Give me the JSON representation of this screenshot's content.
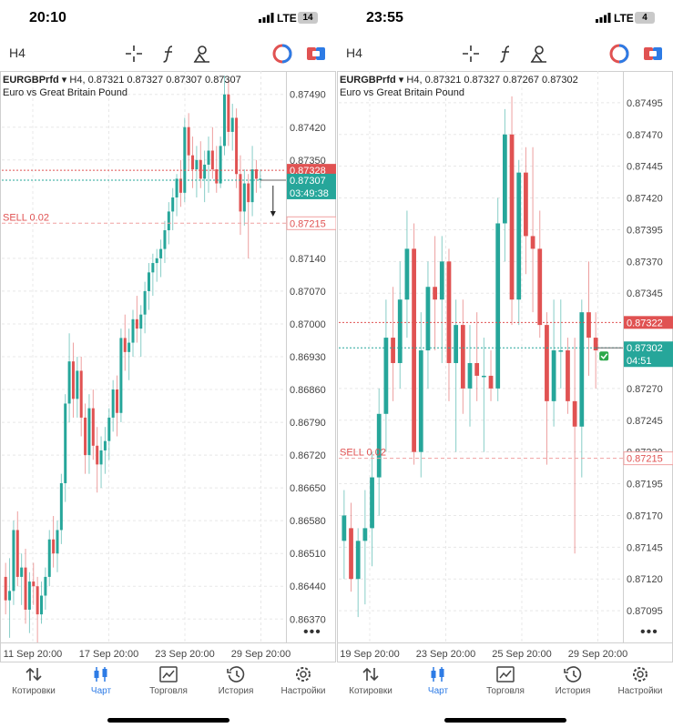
{
  "screens": [
    {
      "status": {
        "time": "20:10",
        "network": "LTE",
        "battery": "14"
      },
      "timeframe": "H4",
      "symbol": {
        "name": "EURGBPrfd",
        "arrow": "▾",
        "ohlc": "H4, 0.87321 0.87327 0.87307 0.87307",
        "description": "Euro vs Great Britain Pound"
      },
      "price_axis": [
        "0.87490",
        "0.87420",
        "0.87350",
        "0.87140",
        "0.87070",
        "0.87000",
        "0.86930",
        "0.86860",
        "0.86790",
        "0.86720",
        "0.86650",
        "0.86580",
        "0.86510",
        "0.86440",
        "0.86370"
      ],
      "time_axis": [
        "11 Sep 20:00",
        "17 Sep 20:00",
        "23 Sep 20:00",
        "29 Sep 20:00"
      ],
      "ask_price": "0.87328",
      "bid_price": "0.87307",
      "countdown": "03:49:38",
      "order": {
        "label": "SELL 0.02",
        "price": "0.87215"
      },
      "chart_data": {
        "type": "candlestick",
        "y_min": 0.8632,
        "y_max": 0.8754,
        "ask": 0.87328,
        "bid": 0.87307,
        "order": 0.87215,
        "candles": [
          [
            0.8646,
            0.8649,
            0.8638,
            0.8641
          ],
          [
            0.8641,
            0.865,
            0.8633,
            0.8643
          ],
          [
            0.8643,
            0.8658,
            0.864,
            0.8656
          ],
          [
            0.8656,
            0.866,
            0.8644,
            0.8646
          ],
          [
            0.8646,
            0.8651,
            0.864,
            0.8648
          ],
          [
            0.8648,
            0.8652,
            0.8636,
            0.8639
          ],
          [
            0.8639,
            0.8647,
            0.8634,
            0.8645
          ],
          [
            0.8645,
            0.8649,
            0.864,
            0.8644
          ],
          [
            0.8644,
            0.8646,
            0.8632,
            0.8638
          ],
          [
            0.8638,
            0.8645,
            0.8636,
            0.8642
          ],
          [
            0.8642,
            0.8648,
            0.8639,
            0.8646
          ],
          [
            0.8646,
            0.8656,
            0.8644,
            0.8654
          ],
          [
            0.8654,
            0.8659,
            0.8648,
            0.8651
          ],
          [
            0.8651,
            0.8658,
            0.8647,
            0.8656
          ],
          [
            0.8656,
            0.8668,
            0.8653,
            0.8666
          ],
          [
            0.8666,
            0.8685,
            0.8662,
            0.8683
          ],
          [
            0.8683,
            0.8698,
            0.8679,
            0.8692
          ],
          [
            0.8692,
            0.8696,
            0.868,
            0.8684
          ],
          [
            0.8684,
            0.8693,
            0.868,
            0.869
          ],
          [
            0.869,
            0.8693,
            0.8676,
            0.868
          ],
          [
            0.868,
            0.8683,
            0.8668,
            0.8672
          ],
          [
            0.8672,
            0.8685,
            0.8668,
            0.8682
          ],
          [
            0.8682,
            0.8686,
            0.8671,
            0.8674
          ],
          [
            0.8674,
            0.8678,
            0.8664,
            0.867
          ],
          [
            0.867,
            0.8676,
            0.8665,
            0.8673
          ],
          [
            0.8673,
            0.8678,
            0.8668,
            0.8675
          ],
          [
            0.8675,
            0.8682,
            0.8671,
            0.868
          ],
          [
            0.868,
            0.8688,
            0.8677,
            0.8686
          ],
          [
            0.8686,
            0.8689,
            0.8676,
            0.8681
          ],
          [
            0.8681,
            0.8699,
            0.8679,
            0.8697
          ],
          [
            0.8697,
            0.8702,
            0.869,
            0.8694
          ],
          [
            0.8694,
            0.8699,
            0.8688,
            0.8696
          ],
          [
            0.8696,
            0.8703,
            0.8693,
            0.8701
          ],
          [
            0.8701,
            0.8706,
            0.8696,
            0.8699
          ],
          [
            0.8699,
            0.8704,
            0.8693,
            0.8702
          ],
          [
            0.8702,
            0.8709,
            0.8698,
            0.8707
          ],
          [
            0.8707,
            0.8713,
            0.8703,
            0.8711
          ],
          [
            0.8711,
            0.8715,
            0.8706,
            0.8713
          ],
          [
            0.8713,
            0.8716,
            0.8709,
            0.8714
          ],
          [
            0.8714,
            0.8718,
            0.871,
            0.8716
          ],
          [
            0.8716,
            0.8722,
            0.8713,
            0.872
          ],
          [
            0.872,
            0.8726,
            0.8717,
            0.8724
          ],
          [
            0.8724,
            0.8729,
            0.872,
            0.8727
          ],
          [
            0.8727,
            0.8732,
            0.8723,
            0.8731
          ],
          [
            0.8731,
            0.8735,
            0.8725,
            0.8728
          ],
          [
            0.8728,
            0.8744,
            0.8726,
            0.8742
          ],
          [
            0.8742,
            0.8745,
            0.8733,
            0.8736
          ],
          [
            0.8736,
            0.874,
            0.8729,
            0.8733
          ],
          [
            0.8733,
            0.8738,
            0.8727,
            0.8735
          ],
          [
            0.8735,
            0.8739,
            0.8729,
            0.8731
          ],
          [
            0.8731,
            0.8737,
            0.8726,
            0.8734
          ],
          [
            0.8734,
            0.874,
            0.8728,
            0.8737
          ],
          [
            0.8737,
            0.8742,
            0.8731,
            0.8733
          ],
          [
            0.8733,
            0.8738,
            0.8728,
            0.873
          ],
          [
            0.873,
            0.874,
            0.8729,
            0.8738
          ],
          [
            0.8738,
            0.8753,
            0.8736,
            0.8749
          ],
          [
            0.8749,
            0.8752,
            0.8738,
            0.8741
          ],
          [
            0.8741,
            0.8747,
            0.8737,
            0.8744
          ],
          [
            0.8744,
            0.8746,
            0.8729,
            0.8732
          ],
          [
            0.8732,
            0.8736,
            0.8719,
            0.8724
          ],
          [
            0.8724,
            0.8733,
            0.8721,
            0.873
          ],
          [
            0.873,
            0.8732,
            0.8714,
            0.8726
          ],
          [
            0.8726,
            0.8738,
            0.8723,
            0.8733
          ],
          [
            0.8733,
            0.8735,
            0.8728,
            0.8731
          ],
          [
            0.8731,
            0.8733,
            0.8729,
            0.8731
          ]
        ]
      },
      "nav": [
        {
          "label": "Котировки",
          "icon": "quotes-icon"
        },
        {
          "label": "Чарт",
          "icon": "chart-icon",
          "active": true
        },
        {
          "label": "Торговля",
          "icon": "trade-icon"
        },
        {
          "label": "История",
          "icon": "history-icon"
        },
        {
          "label": "Настройки",
          "icon": "settings-icon"
        }
      ]
    },
    {
      "status": {
        "time": "23:55",
        "network": "LTE",
        "battery": "4"
      },
      "timeframe": "H4",
      "symbol": {
        "name": "EURGBPrfd",
        "arrow": "▾",
        "ohlc": "H4, 0.87321 0.87327 0.87267 0.87302",
        "description": "Euro vs Great Britain Pound"
      },
      "price_axis": [
        "0.87495",
        "0.87470",
        "0.87445",
        "0.87420",
        "0.87395",
        "0.87370",
        "0.87345",
        "0.87270",
        "0.87245",
        "0.87220",
        "0.87195",
        "0.87170",
        "0.87145",
        "0.87120",
        "0.87095"
      ],
      "time_axis": [
        "19 Sep 20:00",
        "23 Sep 20:00",
        "25 Sep 20:00",
        "29 Sep 20:00"
      ],
      "ask_price": "0.87322",
      "bid_price": "0.87302",
      "countdown": "04:51",
      "order": {
        "label": "SELL 0.02",
        "price": "0.87215"
      },
      "chart_data": {
        "type": "candlestick",
        "y_min": 0.8707,
        "y_max": 0.8752,
        "ask": 0.87322,
        "bid": 0.87302,
        "order": 0.87215,
        "candles": [
          [
            0.8715,
            0.8719,
            0.8712,
            0.8717
          ],
          [
            0.8716,
            0.8718,
            0.8711,
            0.8712
          ],
          [
            0.8712,
            0.8716,
            0.8709,
            0.8715
          ],
          [
            0.8715,
            0.8719,
            0.871,
            0.8716
          ],
          [
            0.8716,
            0.8722,
            0.8713,
            0.872
          ],
          [
            0.872,
            0.8727,
            0.8717,
            0.8725
          ],
          [
            0.8725,
            0.8734,
            0.8722,
            0.8731
          ],
          [
            0.8731,
            0.8735,
            0.8726,
            0.8729
          ],
          [
            0.8729,
            0.8737,
            0.8727,
            0.8734
          ],
          [
            0.8734,
            0.8741,
            0.8731,
            0.8738
          ],
          [
            0.8738,
            0.874,
            0.8721,
            0.8722
          ],
          [
            0.8722,
            0.8733,
            0.872,
            0.873
          ],
          [
            0.873,
            0.8737,
            0.8727,
            0.8735
          ],
          [
            0.8735,
            0.8739,
            0.873,
            0.8734
          ],
          [
            0.8734,
            0.8739,
            0.8729,
            0.8737
          ],
          [
            0.8737,
            0.8738,
            0.8726,
            0.8729
          ],
          [
            0.8729,
            0.8734,
            0.8722,
            0.8732
          ],
          [
            0.8732,
            0.8734,
            0.8725,
            0.8727
          ],
          [
            0.8727,
            0.8732,
            0.8724,
            0.8729
          ],
          [
            0.8729,
            0.8733,
            0.8726,
            0.8728
          ],
          [
            0.8728,
            0.8731,
            0.8722,
            0.8728
          ],
          [
            0.8728,
            0.873,
            0.8726,
            0.8727
          ],
          [
            0.8727,
            0.8742,
            0.8726,
            0.874
          ],
          [
            0.874,
            0.8749,
            0.8737,
            0.8747
          ],
          [
            0.8747,
            0.875,
            0.8732,
            0.8734
          ],
          [
            0.8734,
            0.8745,
            0.8732,
            0.8744
          ],
          [
            0.8744,
            0.8746,
            0.8736,
            0.8739
          ],
          [
            0.8739,
            0.8746,
            0.8733,
            0.8738
          ],
          [
            0.8738,
            0.8741,
            0.8731,
            0.8732
          ],
          [
            0.8732,
            0.8733,
            0.8721,
            0.8726
          ],
          [
            0.8726,
            0.8734,
            0.8724,
            0.873
          ],
          [
            0.873,
            0.8734,
            0.8727,
            0.873
          ],
          [
            0.873,
            0.8731,
            0.8725,
            0.8726
          ],
          [
            0.8726,
            0.8731,
            0.8714,
            0.8724
          ],
          [
            0.8724,
            0.8734,
            0.872,
            0.8733
          ],
          [
            0.8733,
            0.8737,
            0.8728,
            0.8731
          ],
          [
            0.8731,
            0.8733,
            0.8727,
            0.873
          ]
        ]
      },
      "nav": [
        {
          "label": "Котировки",
          "icon": "quotes-icon"
        },
        {
          "label": "Чарт",
          "icon": "chart-icon",
          "active": true
        },
        {
          "label": "Торговля",
          "icon": "trade-icon"
        },
        {
          "label": "История",
          "icon": "history-icon"
        },
        {
          "label": "Настройки",
          "icon": "settings-icon"
        }
      ]
    }
  ],
  "colors": {
    "bull": "#26a69a",
    "bear": "#e05252",
    "accent": "#2d7be5",
    "grid": "#e8e8e8"
  }
}
